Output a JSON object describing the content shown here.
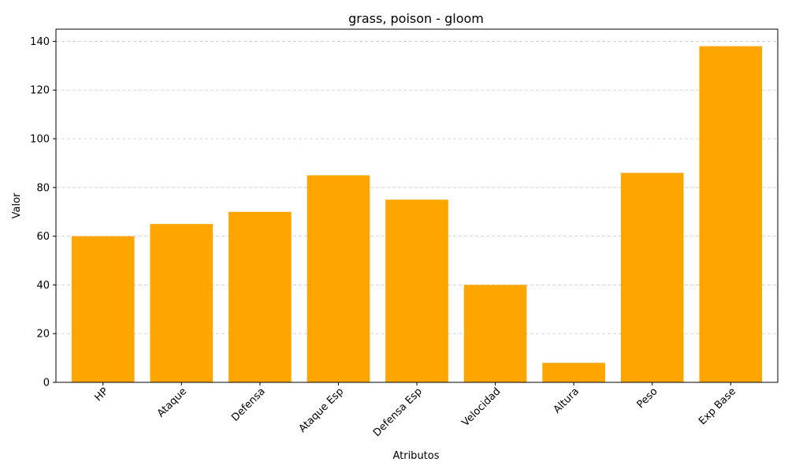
{
  "chart_data": {
    "type": "bar",
    "title": "grass, poison - gloom",
    "xlabel": "Atributos",
    "ylabel": "Valor",
    "categories": [
      "HP",
      "Ataque",
      "Defensa",
      "Ataque Esp",
      "Defensa Esp",
      "Velocidad",
      "Altura",
      "Peso",
      "Exp Base"
    ],
    "values": [
      60,
      65,
      70,
      85,
      75,
      40,
      8,
      86,
      138
    ],
    "ylim": [
      0,
      145
    ],
    "yticks": [
      0,
      20,
      40,
      60,
      80,
      100,
      120,
      140
    ],
    "grid": "horizontal dashed",
    "legend": "none",
    "bar_color": "#ffa500"
  }
}
